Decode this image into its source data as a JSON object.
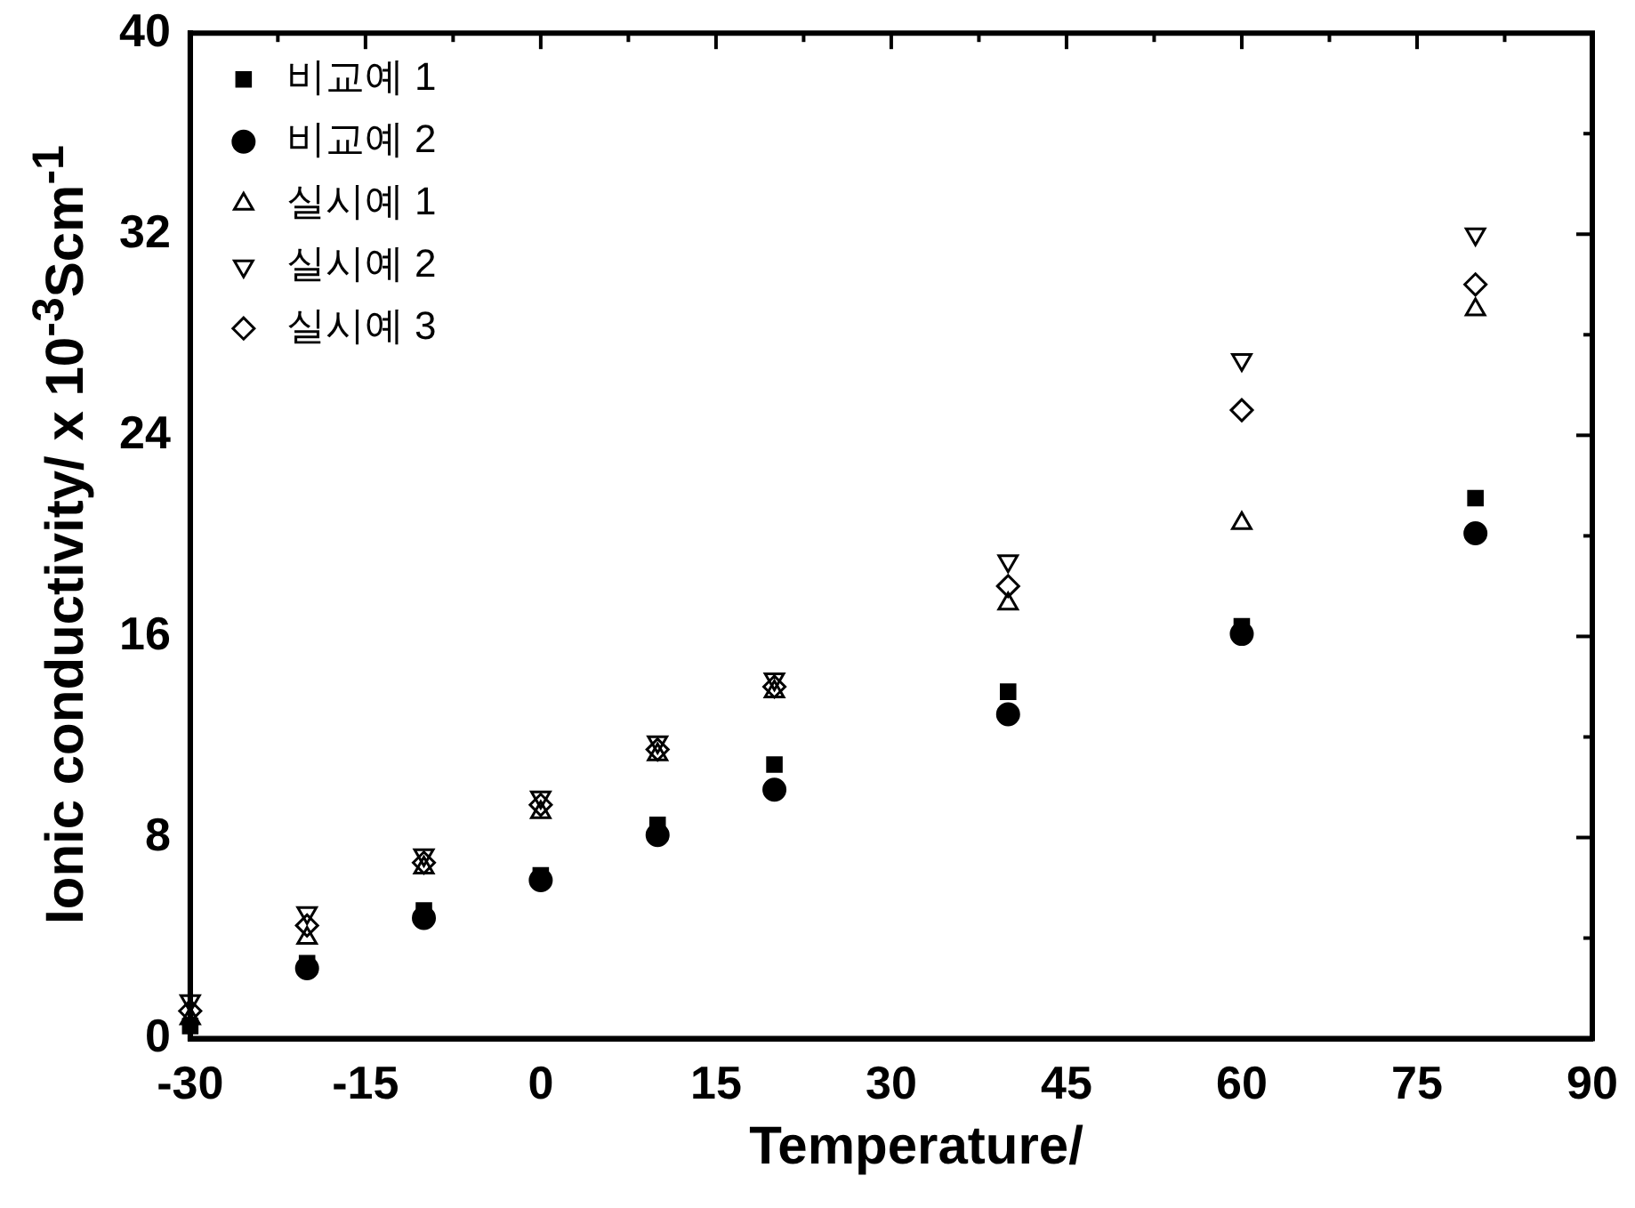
{
  "chart_data": {
    "type": "scatter",
    "xlabel": "Temperature/",
    "ylabel": "Ionic conductivity/ x 10$^{-3}$Scm$^{-1}$",
    "x": [
      -30,
      -20,
      -10,
      0,
      10,
      20,
      40,
      60,
      80
    ],
    "series": [
      {
        "name": "비교예 1",
        "color": "#000000",
        "marker": "square",
        "values": [
          0.5,
          3.0,
          5.1,
          6.5,
          8.5,
          10.9,
          13.8,
          16.4,
          21.5
        ]
      },
      {
        "name": "비교예 2",
        "color": "#000000",
        "marker": "circle",
        "values": [
          null,
          2.8,
          4.8,
          6.3,
          8.1,
          9.9,
          12.9,
          16.1,
          20.1
        ]
      },
      {
        "name": "실시예 1",
        "color": "#000000",
        "marker": "triangle",
        "values": [
          0.8,
          4.0,
          6.8,
          9.0,
          11.3,
          13.8,
          17.3,
          20.5,
          29
        ]
      },
      {
        "name": "실시예 2",
        "color": "#000000",
        "marker": "triangle-down",
        "values": [
          1.5,
          5.0,
          7.3,
          9.6,
          11.8,
          14.3,
          19.0,
          27,
          32
        ]
      },
      {
        "name": "실시예 3",
        "color": "#000000",
        "marker": "diamond",
        "values": [
          1.1,
          4.5,
          7.0,
          9.3,
          11.5,
          14.0,
          18.0,
          25,
          30
        ]
      }
    ],
    "xlim": [
      -30,
      90
    ],
    "ylim": [
      0,
      40
    ],
    "xticks": [
      -30,
      {
        "value": -22.5,
        "label": null
      },
      -15,
      {
        "value": -7.5,
        "label": null
      },
      0,
      {
        "value": 7.5,
        "label": null
      },
      15,
      {
        "value": 22.5,
        "label": null
      },
      30,
      {
        "value": 37.5,
        "label": null
      },
      45,
      {
        "value": 52.5,
        "label": null
      },
      60,
      {
        "value": 67.5,
        "label": null
      },
      75,
      {
        "value": 82.5,
        "label": null
      },
      90
    ],
    "yticks": [
      0,
      {
        "value": 4,
        "label": null
      },
      8,
      {
        "value": 12,
        "label": null
      },
      16,
      {
        "value": 20,
        "label": null
      },
      24,
      {
        "value": 28,
        "label": null
      },
      32,
      {
        "value": 36,
        "label": null
      },
      40
    ],
    "grid": false,
    "legend": "top left"
  }
}
